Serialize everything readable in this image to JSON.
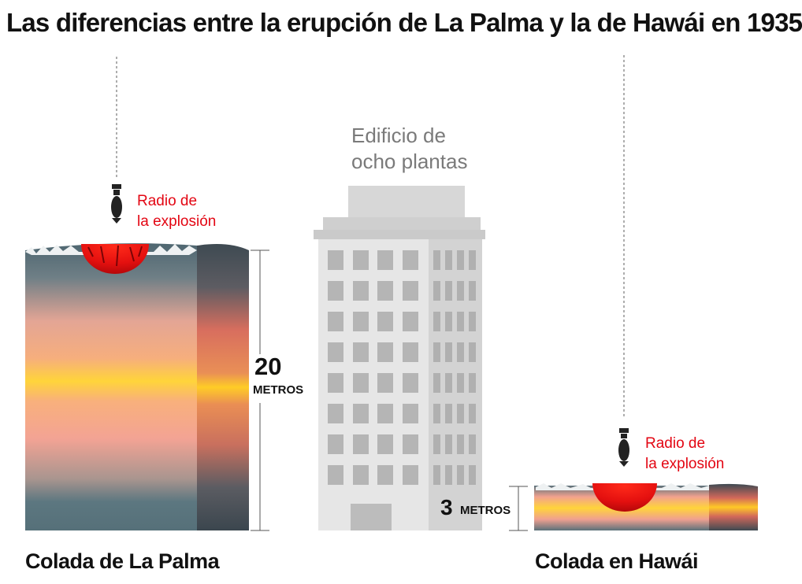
{
  "title": "Las diferencias entre la erupción de La Palma y la de Hawái en 1935",
  "building": {
    "label_line1": "Edificio de",
    "label_line2": "ocho plantas"
  },
  "la_palma": {
    "explosion_line1": "Radio de",
    "explosion_line2": "la explosión",
    "height_value": "20",
    "height_unit": "METROS",
    "caption": "Colada de La Palma"
  },
  "hawaii": {
    "explosion_line1": "Radio de",
    "explosion_line2": "la explosión",
    "height_value": "3",
    "height_unit": "METROS",
    "caption": "Colada en Hawái"
  },
  "colors": {
    "explosion_red": "#e30613",
    "lava_yellow": "#ffd21f",
    "lava_pink": "#f7a58e",
    "rock_grey": "#55707a",
    "building_grey": "#d9d9d9"
  }
}
